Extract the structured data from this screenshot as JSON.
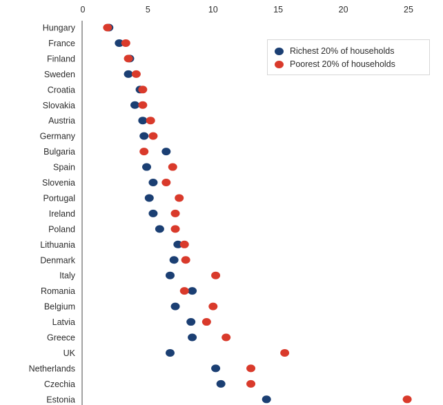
{
  "chart_data": {
    "type": "scatter",
    "title": "",
    "xlabel": "",
    "ylabel": "",
    "xlim": [
      0,
      25
    ],
    "xticks": [
      "0",
      "5",
      "10",
      "15",
      "20",
      "25"
    ],
    "grid": false,
    "legend_position": "top-right",
    "categories": [
      "Hungary",
      "France",
      "Finland",
      "Sweden",
      "Croatia",
      "Slovakia",
      "Austria",
      "Germany",
      "Bulgaria",
      "Spain",
      "Slovenia",
      "Portugal",
      "Ireland",
      "Poland",
      "Lithuania",
      "Denmark",
      "Italy",
      "Romania",
      "Belgium",
      "Latvia",
      "Greece",
      "UK",
      "Netherlands",
      "Czechia",
      "Estonia"
    ],
    "series": [
      {
        "name": "Richest 20% of households",
        "color": "#1b3f73",
        "values": [
          2.0,
          2.8,
          3.6,
          3.5,
          4.4,
          4.0,
          4.6,
          4.7,
          6.4,
          4.9,
          5.4,
          5.1,
          5.4,
          5.9,
          7.3,
          7.0,
          6.7,
          8.4,
          7.1,
          8.3,
          8.4,
          6.7,
          10.2,
          10.6,
          14.1
        ]
      },
      {
        "name": "Poorest 20% of households",
        "color": "#d93a2b",
        "values": [
          1.9,
          3.3,
          3.5,
          4.1,
          4.6,
          4.6,
          5.2,
          5.4,
          4.7,
          6.9,
          6.4,
          7.4,
          7.1,
          7.1,
          7.8,
          7.9,
          10.2,
          7.8,
          10.0,
          9.5,
          11.0,
          15.5,
          12.9,
          12.9,
          24.9
        ]
      }
    ]
  }
}
